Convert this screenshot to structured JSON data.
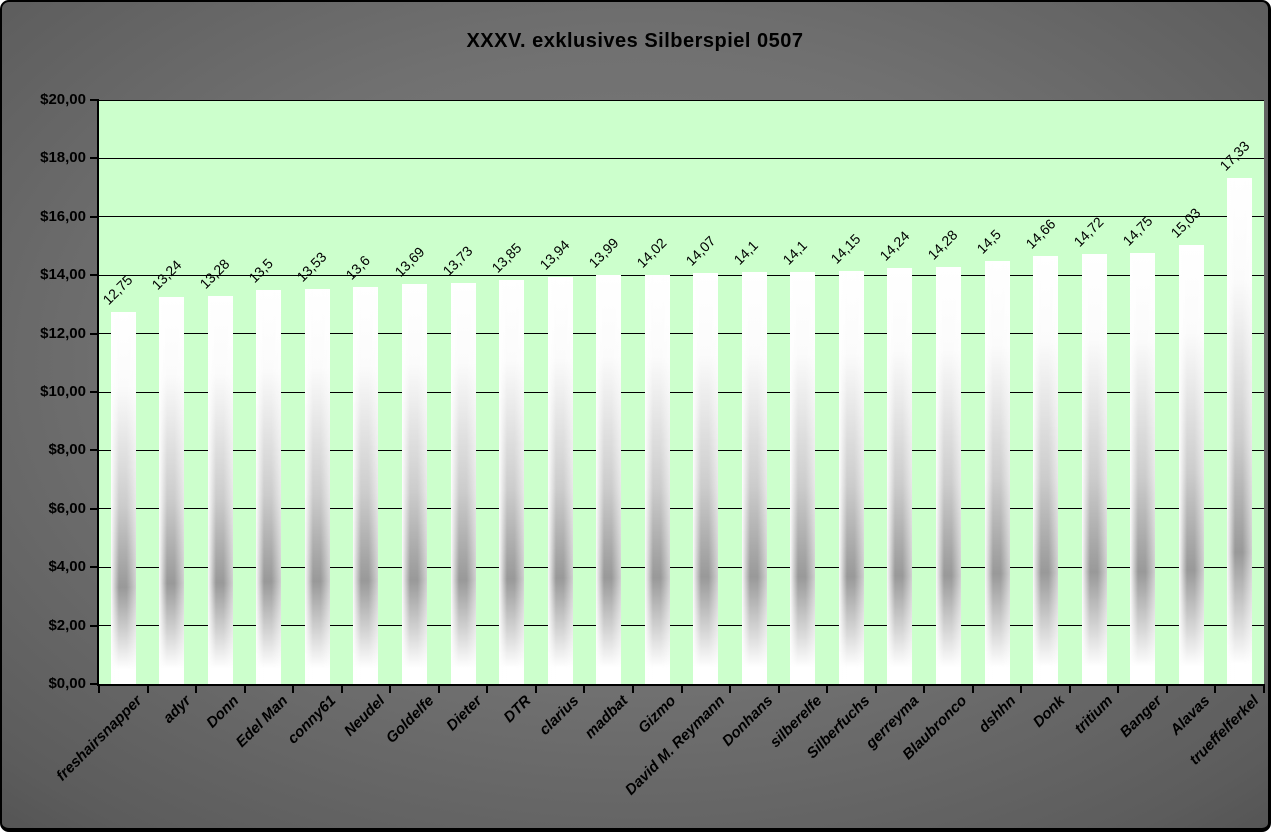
{
  "chart_data": {
    "type": "bar",
    "title": "XXXV. exklusives Silberspiel 0507",
    "categories": [
      "freshairsnapper",
      "adyr",
      "Donn",
      "Edel Man",
      "conny61",
      "Neudel",
      "Goldelfe",
      "Dieter",
      "DTR",
      "clarius",
      "madbat",
      "Gizmo",
      "David M. Reymann",
      "Donhans",
      "silberelfe",
      "Silberfuchs",
      "gerreyma",
      "Blaubronco",
      "dshhn",
      "Donk",
      "tritium",
      "Banger",
      "Alavas",
      "trueffelferkel"
    ],
    "values": [
      12.75,
      13.24,
      13.28,
      13.5,
      13.53,
      13.6,
      13.69,
      13.73,
      13.85,
      13.94,
      13.99,
      14.02,
      14.07,
      14.1,
      14.1,
      14.15,
      14.24,
      14.28,
      14.5,
      14.66,
      14.72,
      14.75,
      15.03,
      17.33
    ],
    "value_labels": [
      "12,75",
      "13,24",
      "13,28",
      "13,5",
      "13,53",
      "13,6",
      "13,69",
      "13,73",
      "13,85",
      "13,94",
      "13,99",
      "14,02",
      "14,07",
      "14,1",
      "14,1",
      "14,15",
      "14,24",
      "14,28",
      "14,5",
      "14,66",
      "14,72",
      "14,75",
      "15,03",
      "17,33"
    ],
    "y_axis": {
      "min": 0,
      "max": 20,
      "step": 2,
      "tick_labels": [
        "$0,00",
        "$2,00",
        "$4,00",
        "$6,00",
        "$8,00",
        "$10,00",
        "$12,00",
        "$14,00",
        "$16,00",
        "$18,00",
        "$20,00"
      ]
    },
    "xlabel": "",
    "ylabel": "",
    "legend": "none",
    "grid": "horizontal-major",
    "colors": {
      "plot_background": "#ccffcc",
      "gridline": "#000000",
      "text": "#000000",
      "bar_highlight": "#ffffff",
      "bar_shade": "#999999",
      "chart_background_center": "#7d7d7d",
      "chart_background_edge": "#3f3f3f"
    }
  }
}
